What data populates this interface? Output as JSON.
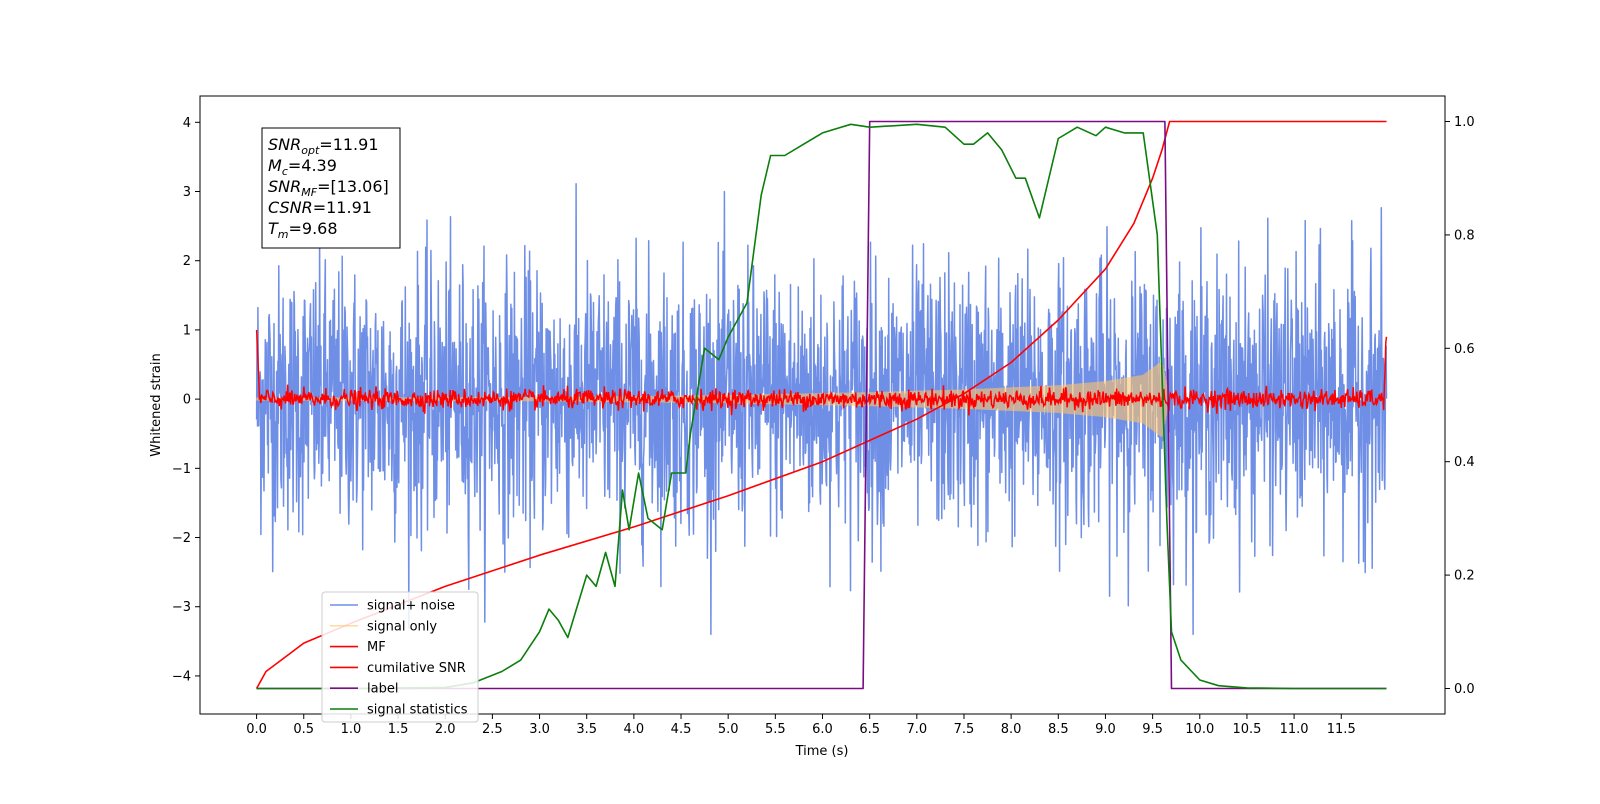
{
  "chart_data": {
    "type": "line",
    "xlabel": "Time (s)",
    "ylabel_left": "Whitened strain",
    "ylabel_right": "",
    "xlim": [
      -0.6,
      12.6
    ],
    "ylim_left": [
      -4.55,
      4.38
    ],
    "ylim_right": [
      -0.045,
      1.045
    ],
    "x_ticks": [
      0.0,
      0.5,
      1.0,
      1.5,
      2.0,
      2.5,
      3.0,
      3.5,
      4.0,
      4.5,
      5.0,
      5.5,
      6.0,
      6.5,
      7.0,
      7.5,
      8.0,
      8.5,
      9.0,
      9.5,
      10.0,
      10.5,
      11.0,
      11.5
    ],
    "x_tick_labels": [
      "0.0",
      "0.5",
      "1.0",
      "1.5",
      "2.0",
      "2.5",
      "3.0",
      "3.5",
      "4.0",
      "4.5",
      "5.0",
      "5.5",
      "6.0",
      "6.5",
      "7.0",
      "7.5",
      "8.0",
      "8.5",
      "9.0",
      "9.5",
      "10.0",
      "10.5",
      "11.0",
      "11.5"
    ],
    "y_left_ticks": [
      4,
      3,
      2,
      1,
      0,
      -1,
      -2,
      -3,
      -4
    ],
    "y_left_tick_labels": [
      "4",
      "3",
      "2",
      "1",
      "0",
      "−1",
      "−2",
      "−3",
      "−4"
    ],
    "y_right_ticks": [
      1.0,
      0.8,
      0.6,
      0.4,
      0.2,
      0.0
    ],
    "y_right_tick_labels": [
      "1.0",
      "0.8",
      "0.6",
      "0.4",
      "0.2",
      "0.0"
    ],
    "grid": false,
    "legend_position": "bottom-left",
    "series": [
      {
        "name": "signal+ noise",
        "axis": "left",
        "color": "#6f8fe6",
        "kind": "noise",
        "x_range": [
          0.0,
          11.98
        ],
        "amplitude_std": 0.95,
        "peak_range": [
          -3.4,
          4.0
        ]
      },
      {
        "name": "signal only",
        "axis": "left",
        "color": "#ffc56b",
        "kind": "chirp",
        "x_range": [
          0.0,
          9.68
        ],
        "envelope": {
          "x": [
            0.0,
            3.0,
            5.0,
            6.5,
            7.5,
            8.5,
            9.0,
            9.4,
            9.6,
            9.68
          ],
          "amp": [
            0.02,
            0.03,
            0.06,
            0.1,
            0.14,
            0.2,
            0.26,
            0.35,
            0.55,
            0.0
          ]
        }
      },
      {
        "name": "MF",
        "axis": "left",
        "color": "#ff0000",
        "kind": "noise_small",
        "x_range": [
          0.0,
          11.98
        ],
        "amplitude_std": 0.07,
        "start_value": 1.0,
        "end_value": 0.9
      },
      {
        "name": "cumilative SNR",
        "axis": "right",
        "color": "#ff0000",
        "kind": "line",
        "points": [
          [
            0.0,
            0.0
          ],
          [
            0.1,
            0.03
          ],
          [
            0.5,
            0.08
          ],
          [
            1.0,
            0.115
          ],
          [
            2.0,
            0.18
          ],
          [
            3.0,
            0.235
          ],
          [
            4.0,
            0.285
          ],
          [
            5.0,
            0.34
          ],
          [
            6.0,
            0.4
          ],
          [
            7.0,
            0.475
          ],
          [
            7.5,
            0.52
          ],
          [
            8.0,
            0.575
          ],
          [
            8.5,
            0.65
          ],
          [
            9.0,
            0.74
          ],
          [
            9.3,
            0.82
          ],
          [
            9.5,
            0.9
          ],
          [
            9.6,
            0.95
          ],
          [
            9.68,
            1.0
          ],
          [
            11.98,
            1.0
          ]
        ]
      },
      {
        "name": "label",
        "axis": "right",
        "color": "#7b0d84",
        "kind": "step",
        "points": [
          [
            0.0,
            0.0
          ],
          [
            6.43,
            0.0
          ],
          [
            6.5,
            1.0
          ],
          [
            9.63,
            1.0
          ],
          [
            9.7,
            0.0
          ],
          [
            11.98,
            0.0
          ]
        ]
      },
      {
        "name": "signal statistics",
        "axis": "right",
        "color": "#0b7e0b",
        "kind": "line",
        "points": [
          [
            0.0,
            0.0
          ],
          [
            1.0,
            0.0
          ],
          [
            2.0,
            0.002
          ],
          [
            2.3,
            0.01
          ],
          [
            2.6,
            0.03
          ],
          [
            2.8,
            0.05
          ],
          [
            3.0,
            0.1
          ],
          [
            3.1,
            0.14
          ],
          [
            3.2,
            0.12
          ],
          [
            3.3,
            0.09
          ],
          [
            3.5,
            0.2
          ],
          [
            3.6,
            0.18
          ],
          [
            3.7,
            0.24
          ],
          [
            3.8,
            0.18
          ],
          [
            3.88,
            0.35
          ],
          [
            3.95,
            0.28
          ],
          [
            4.05,
            0.38
          ],
          [
            4.15,
            0.3
          ],
          [
            4.3,
            0.28
          ],
          [
            4.4,
            0.38
          ],
          [
            4.55,
            0.38
          ],
          [
            4.6,
            0.45
          ],
          [
            4.75,
            0.6
          ],
          [
            4.9,
            0.58
          ],
          [
            5.0,
            0.62
          ],
          [
            5.2,
            0.68
          ],
          [
            5.35,
            0.87
          ],
          [
            5.45,
            0.94
          ],
          [
            5.6,
            0.94
          ],
          [
            5.8,
            0.96
          ],
          [
            6.0,
            0.98
          ],
          [
            6.3,
            0.995
          ],
          [
            6.5,
            0.99
          ],
          [
            7.0,
            0.995
          ],
          [
            7.3,
            0.99
          ],
          [
            7.5,
            0.96
          ],
          [
            7.6,
            0.96
          ],
          [
            7.75,
            0.98
          ],
          [
            7.9,
            0.95
          ],
          [
            8.05,
            0.9
          ],
          [
            8.15,
            0.9
          ],
          [
            8.3,
            0.83
          ],
          [
            8.5,
            0.97
          ],
          [
            8.7,
            0.99
          ],
          [
            8.9,
            0.975
          ],
          [
            9.0,
            0.99
          ],
          [
            9.2,
            0.98
          ],
          [
            9.4,
            0.98
          ],
          [
            9.55,
            0.8
          ],
          [
            9.65,
            0.3
          ],
          [
            9.7,
            0.1
          ],
          [
            9.8,
            0.05
          ],
          [
            10.0,
            0.015
          ],
          [
            10.2,
            0.005
          ],
          [
            10.5,
            0.001
          ],
          [
            11.0,
            0.0
          ],
          [
            11.98,
            0.0
          ]
        ]
      }
    ],
    "annotation": {
      "lines": [
        {
          "name": "SNR",
          "sub": "opt",
          "value": "=11.91"
        },
        {
          "name": "M",
          "sub": "c",
          "value": "=4.39"
        },
        {
          "name": "SNR",
          "sub": "MF",
          "value": "=[13.06]"
        },
        {
          "name": "CSNR",
          "sub": "",
          "value": "=11.91"
        },
        {
          "name": "T",
          "sub": "m",
          "value": "=9.68"
        }
      ]
    }
  }
}
